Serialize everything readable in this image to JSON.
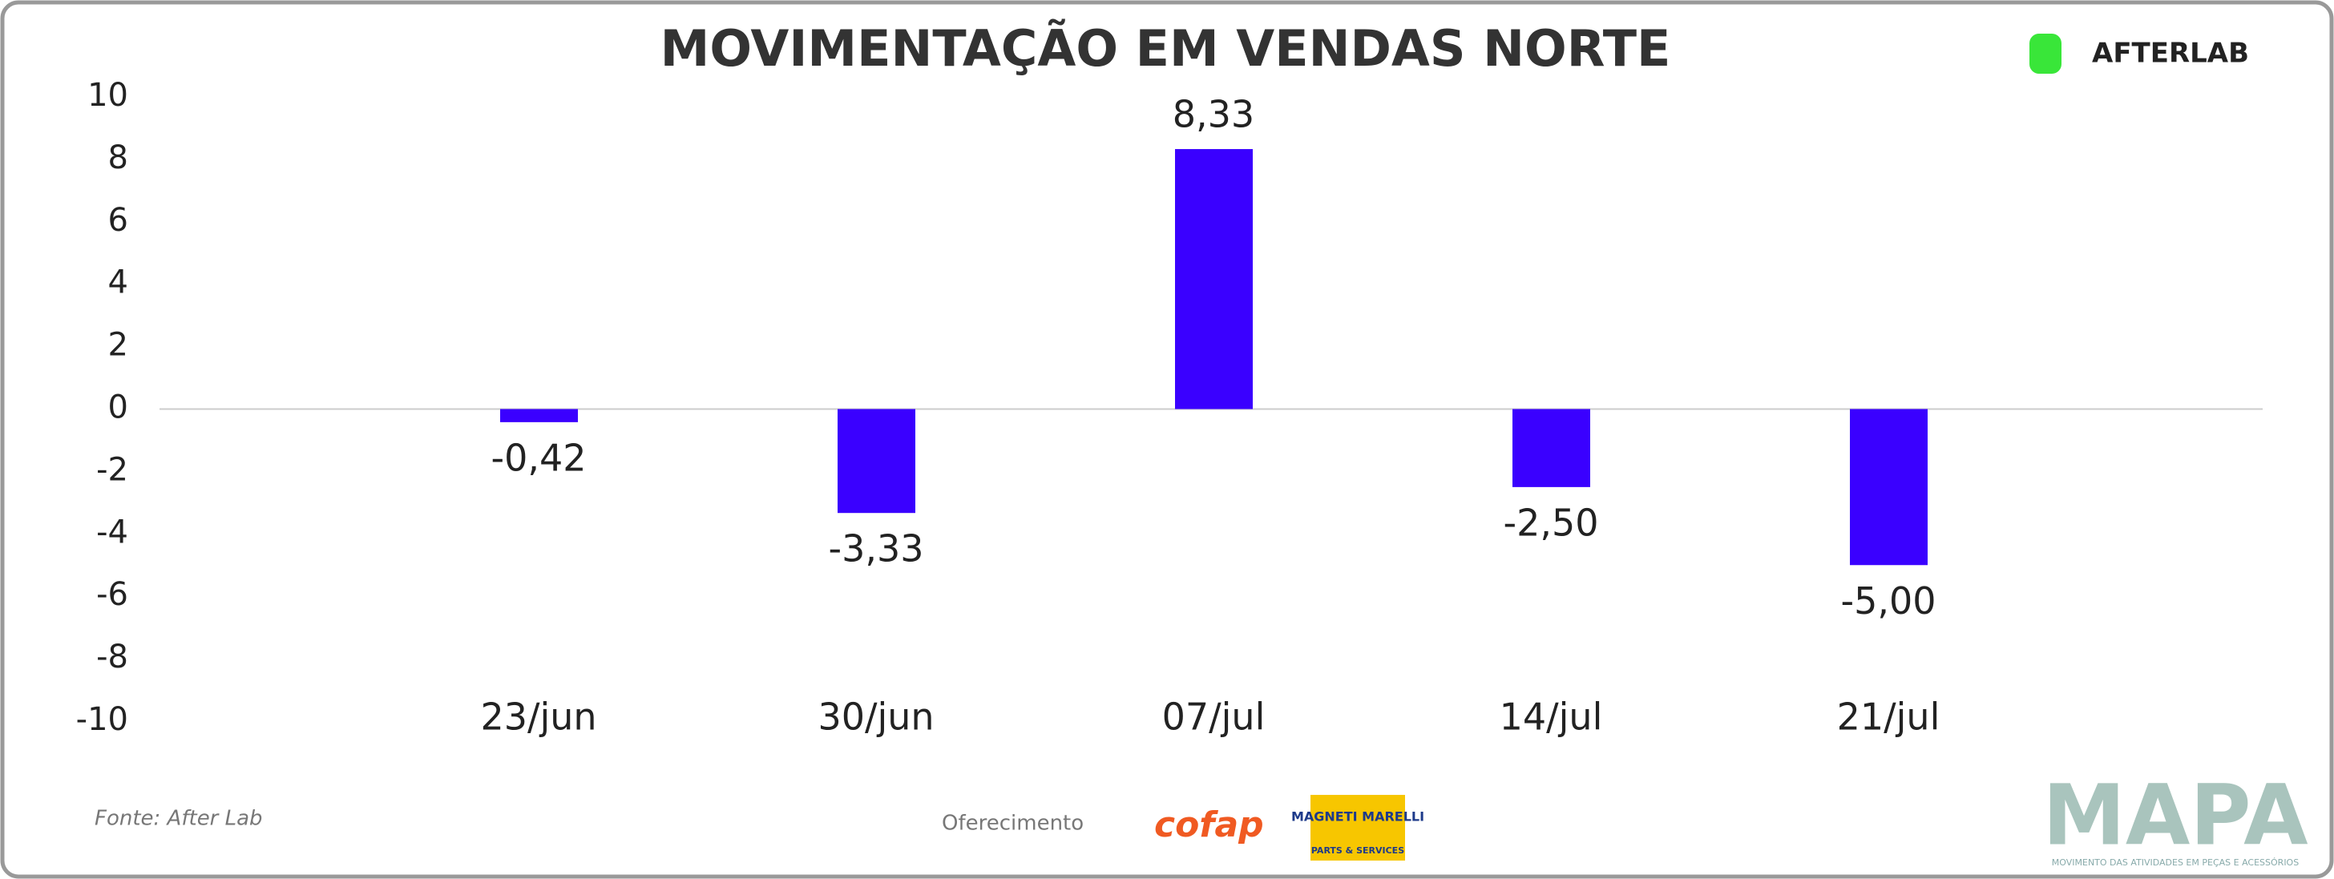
{
  "chart_data": {
    "type": "bar",
    "title": "MOVIMENTAÇÃO EM VENDAS NORTE",
    "categories": [
      "23/jun",
      "30/jun",
      "07/jul",
      "14/jul",
      "21/jul"
    ],
    "values": [
      -0.42,
      -3.33,
      8.33,
      -2.5,
      -5.0
    ],
    "value_labels": [
      "-0,42",
      "-3,33",
      "8,33",
      "-2,50",
      "-5,00"
    ],
    "color": "#3a00ff",
    "ylim": [
      -10,
      10
    ],
    "yticks": [
      -10,
      -8,
      -6,
      -4,
      -2,
      0,
      2,
      4,
      6,
      8,
      10
    ]
  },
  "brand": "AFTERLAB",
  "source": "Fonte: After Lab",
  "sponsor_label": "Oferecimento",
  "sponsors": [
    "cofap",
    "MAGNETI MARELLI",
    "PARTS & SERVICES"
  ],
  "mapa": {
    "name": "MAPA",
    "tagline": "MOVIMENTO DAS ATIVIDADES EM PEÇAS E ACESSÓRIOS"
  }
}
